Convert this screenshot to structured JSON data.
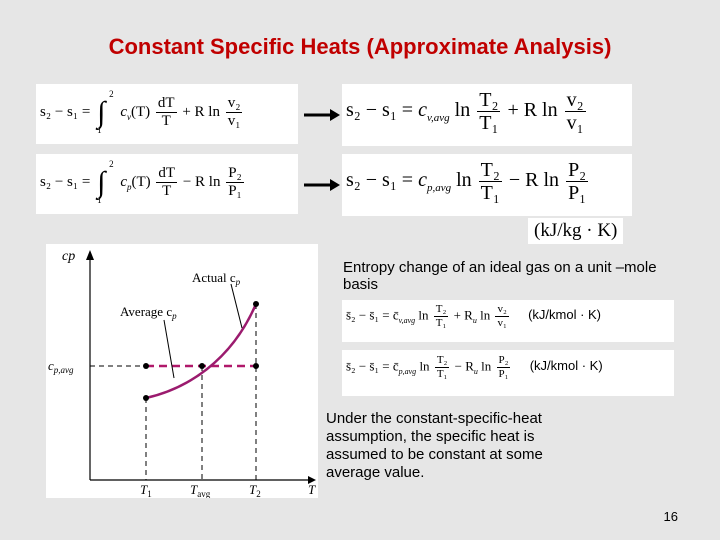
{
  "slide": {
    "title": "Constant Specific Heats (Approximate Analysis)",
    "page_number": "16"
  },
  "eq1_left": {
    "lhs": "s₂ − s₁ =",
    "int_upper": "2",
    "int_lower": "1",
    "term1": "c",
    "term1_sub": "v",
    "term1_arg": "(T)",
    "frac1_num": "dT",
    "frac1_den": "T",
    "op": "+ R ln",
    "frac2_num": "v₂",
    "frac2_den": "v₁"
  },
  "eq2_left": {
    "lhs": "s₂ − s₁ =",
    "int_upper": "2",
    "int_lower": "1",
    "term1": "c",
    "term1_sub": "p",
    "term1_arg": "(T)",
    "frac1_num": "dT",
    "frac1_den": "T",
    "op": "− R ln",
    "frac2_num": "P₂",
    "frac2_den": "P₁"
  },
  "eq1_right": {
    "lhs": "s₂ − s₁ =",
    "coef": "c",
    "coef_sub": "v,avg",
    "ln1": "ln",
    "frac1_num": "T₂",
    "frac1_den": "T₁",
    "op": "+ R ln",
    "frac2_num": "v₂",
    "frac2_den": "v₁"
  },
  "eq2_right": {
    "lhs": "s₂ − s₁ =",
    "coef": "c",
    "coef_sub": "p,avg",
    "ln1": "ln",
    "frac1_num": "T₂",
    "frac1_den": "T₁",
    "op": "− R ln",
    "frac2_num": "P₂",
    "frac2_den": "P₁"
  },
  "units_mass": "(kJ/kg · K)",
  "molar_caption": "Entropy change of an ideal gas on a unit –mole basis",
  "eq3": {
    "lhs": "s̄₂ − s̄₁ = c̄",
    "coef_sub": "v,avg",
    "ln1": "ln",
    "frac1_num": "T₂",
    "frac1_den": "T₁",
    "op": "+ R",
    "op_sub": "u",
    "ln2": "ln",
    "frac2_num": "v₂",
    "frac2_den": "v₁",
    "units": "(kJ/kmol · K)"
  },
  "eq4": {
    "lhs": "s̄₂ − s̄₁ = c̄",
    "coef_sub": "p,avg",
    "ln1": "ln",
    "frac1_num": "T₂",
    "frac1_den": "T₁",
    "op": "− R",
    "op_sub": "u",
    "ln2": "ln",
    "frac2_num": "P₂",
    "frac2_den": "P₁",
    "units": "(kJ/kmol · K)"
  },
  "assumption_text": "Under the constant-specific-heat assumption, the specific heat is assumed to be constant at some average value.",
  "diagram": {
    "y_label": "cp",
    "y_label_sub": "p",
    "actual_label": "Actual c",
    "actual_sub": "p",
    "average_label": "Average c",
    "average_sub": "p",
    "cavg_label": "c",
    "cavg_sub": "p,avg",
    "t1": "T",
    "t1_sub": "1",
    "tavg": "T",
    "tavg_sub": "avg",
    "t2": "T",
    "t2_sub": "2",
    "t_axis": "T",
    "curve_color": "#9b1b6e",
    "avg_line_color": "#b0186a"
  }
}
